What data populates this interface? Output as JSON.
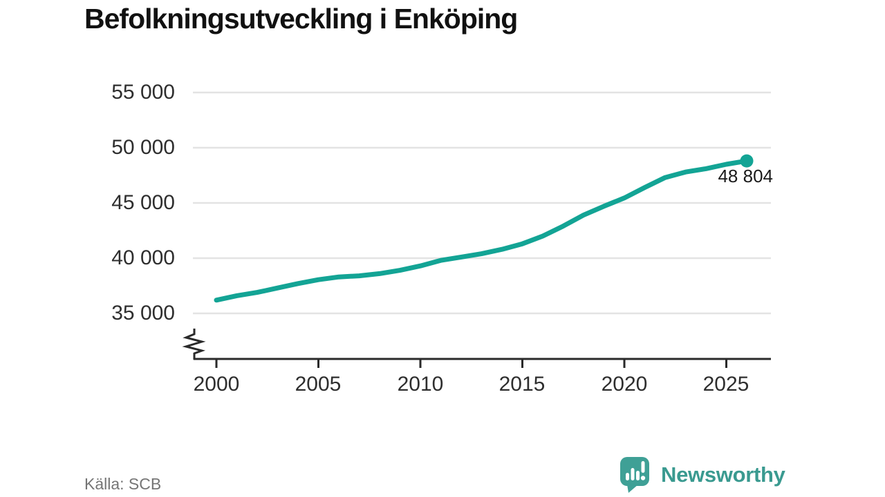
{
  "title": "Befolkningsutveckling i Enköping",
  "source_label": "Källa: SCB",
  "brand": {
    "name": "Newsworthy",
    "color": "#3a9a90",
    "icon": "bar-chart-speech-bubble"
  },
  "colors": {
    "line": "#13a495",
    "gridline": "#e3e3e3",
    "axis": "#2a2a2a",
    "text": "#2e2e2e"
  },
  "chart_data": {
    "type": "line",
    "title": "Befolkningsutveckling i Enköping",
    "xlabel": "",
    "ylabel": "",
    "x": [
      2000,
      2001,
      2002,
      2003,
      2004,
      2005,
      2006,
      2007,
      2008,
      2009,
      2010,
      2011,
      2012,
      2013,
      2014,
      2015,
      2016,
      2017,
      2018,
      2019,
      2020,
      2021,
      2022,
      2023,
      2024,
      2025,
      2026
    ],
    "values": [
      36200,
      36600,
      36900,
      37300,
      37700,
      38050,
      38300,
      38400,
      38600,
      38900,
      39300,
      39800,
      40100,
      40400,
      40800,
      41300,
      42000,
      42900,
      43900,
      44700,
      45450,
      46400,
      47300,
      47800,
      48100,
      48500,
      48804
    ],
    "series_name": "Befolkning",
    "end_label": "48 804",
    "last_value": 48804,
    "ytick_labels": [
      "55 000",
      "50 000",
      "45 000",
      "40 000",
      "35 000"
    ],
    "ytick_values": [
      55000,
      50000,
      45000,
      40000,
      35000
    ],
    "xtick_labels": [
      "2000",
      "2005",
      "2010",
      "2015",
      "2020",
      "2025"
    ],
    "xtick_values": [
      2000,
      2005,
      2010,
      2015,
      2020,
      2025
    ],
    "ylim": [
      35000,
      55000
    ],
    "xlim": [
      2000,
      2027
    ],
    "grid": "horizontal",
    "axis_break": true,
    "legend": "none",
    "line_color": "#13a495"
  }
}
